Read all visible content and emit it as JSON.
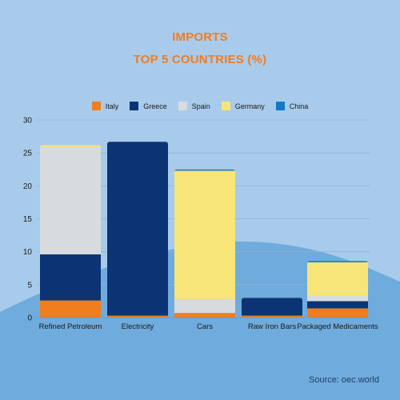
{
  "title": {
    "line1": "IMPORTS",
    "line2": "TOP 5 COUNTRIES (%)"
  },
  "source": "Source: oec.world",
  "colors": {
    "Italy": "#f07e1e",
    "Greece": "#0c3474",
    "Spain": "#d8dbde",
    "Germany": "#f7e577",
    "China": "#1379c3",
    "background": "#a9cbeb",
    "hill": "#6fabdc",
    "title": "#ef7d22"
  },
  "chart_data": {
    "type": "bar",
    "stacked": true,
    "title": "IMPORTS TOP 5 COUNTRIES (%)",
    "categories": [
      "Refined Petroleum",
      "Electricity",
      "Cars",
      "Raw Iron Bars",
      "Packaged Medicaments"
    ],
    "series": [
      {
        "name": "Italy",
        "values": [
          2.6,
          0.3,
          0.7,
          0.3,
          1.4
        ]
      },
      {
        "name": "Greece",
        "values": [
          7.0,
          26.4,
          0.0,
          2.7,
          1.1
        ]
      },
      {
        "name": "Spain",
        "values": [
          16.3,
          0.0,
          2.1,
          0.0,
          0.9
        ]
      },
      {
        "name": "Germany",
        "values": [
          0.3,
          0.0,
          19.5,
          0.0,
          5.0
        ]
      },
      {
        "name": "China",
        "values": [
          0.0,
          0.0,
          0.2,
          0.0,
          0.2
        ]
      }
    ],
    "yticks": [
      0,
      5,
      10,
      15,
      20,
      25,
      30
    ],
    "ylim": [
      0,
      30
    ],
    "grid": true,
    "legend": "top-center",
    "xlabel": "",
    "ylabel": ""
  }
}
